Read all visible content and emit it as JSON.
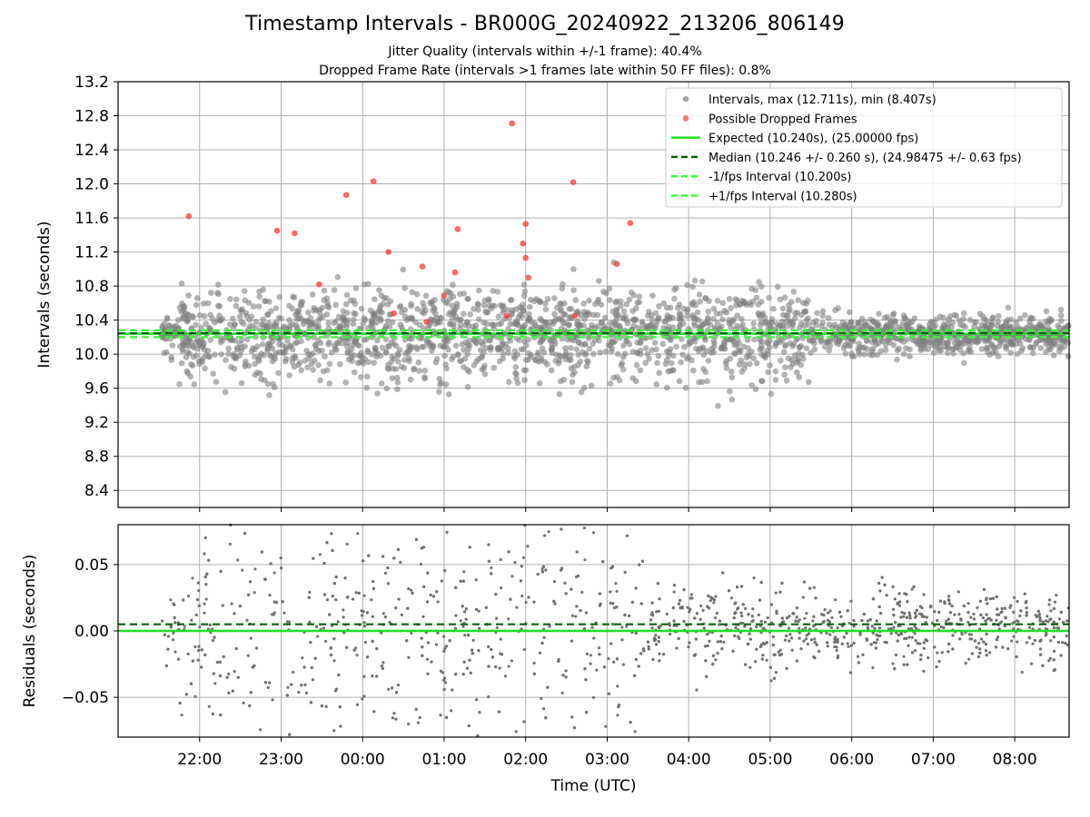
{
  "header": {
    "title": "Timestamp Intervals - BR000G_20240922_213206_806149",
    "subtitle_jitter": "Jitter Quality (intervals within +/-1 frame): 40.4%",
    "subtitle_dropped": "Dropped Frame Rate (intervals >1 frames late within 50 FF files): 0.8%"
  },
  "colors": {
    "points": "#808080",
    "dropped": "#ff3333",
    "expected": "#22dd22",
    "median": "#006400",
    "fps_bounds": "#33ff33",
    "grid": "#b0b0b0"
  },
  "chart_data": [
    {
      "type": "scatter",
      "ylabel": "Intervals (seconds)",
      "ylim": [
        8.2,
        13.2
      ],
      "yticks": [
        "8.4",
        "8.8",
        "9.2",
        "9.6",
        "10.0",
        "10.4",
        "10.8",
        "11.2",
        "11.6",
        "12.0",
        "12.4",
        "12.8",
        "13.2"
      ],
      "x_range_utc": [
        "21:00",
        "08:40"
      ],
      "grid": true,
      "legend_position": "top-right",
      "legend": [
        "Intervals, max (12.711s), min (8.407s)",
        "Possible Dropped Frames",
        "Expected (10.240s), (25.00000 fps)",
        "Median (10.246 +/- 0.260 s), (24.98475 +/- 0.63 fps)",
        "-1/fps Interval (10.200s)",
        "+1/fps Interval (10.280s)"
      ],
      "expected": 10.24,
      "median": 10.246,
      "minus_fps": 10.2,
      "plus_fps": 10.28,
      "dropped_frames": {
        "x": [
          "21:52",
          "22:57",
          "23:10",
          "23:28",
          "23:48",
          "00:08",
          "00:19",
          "00:23",
          "00:44",
          "00:47",
          "01:00",
          "01:08",
          "01:10",
          "01:46",
          "01:50",
          "01:58",
          "02:00",
          "02:00",
          "02:02",
          "02:35",
          "02:36",
          "03:07",
          "03:17"
        ],
        "y": [
          11.62,
          11.45,
          11.42,
          10.82,
          11.87,
          12.03,
          11.2,
          10.48,
          11.03,
          10.38,
          10.69,
          10.96,
          11.47,
          10.45,
          12.71,
          11.3,
          11.53,
          11.13,
          10.9,
          12.02,
          10.45,
          11.06,
          11.54
        ]
      },
      "series": [
        {
          "name": "Intervals, max (12.711s), min (8.407s)",
          "count": 2400,
          "center": 10.24,
          "spread": 0.3,
          "max": 12.711,
          "min": 8.407
        }
      ]
    },
    {
      "type": "scatter",
      "xlabel": "Time (UTC)",
      "ylabel": "Residuals (seconds)",
      "ylim": [
        -0.08,
        0.08
      ],
      "yticks": [
        "−0.05",
        "0.00",
        "0.05"
      ],
      "xticks": [
        "22:00",
        "23:00",
        "00:00",
        "01:00",
        "02:00",
        "03:00",
        "04:00",
        "05:00",
        "06:00",
        "07:00",
        "08:00"
      ],
      "grid": true,
      "expected": 0.0,
      "median": 0.005
    }
  ]
}
